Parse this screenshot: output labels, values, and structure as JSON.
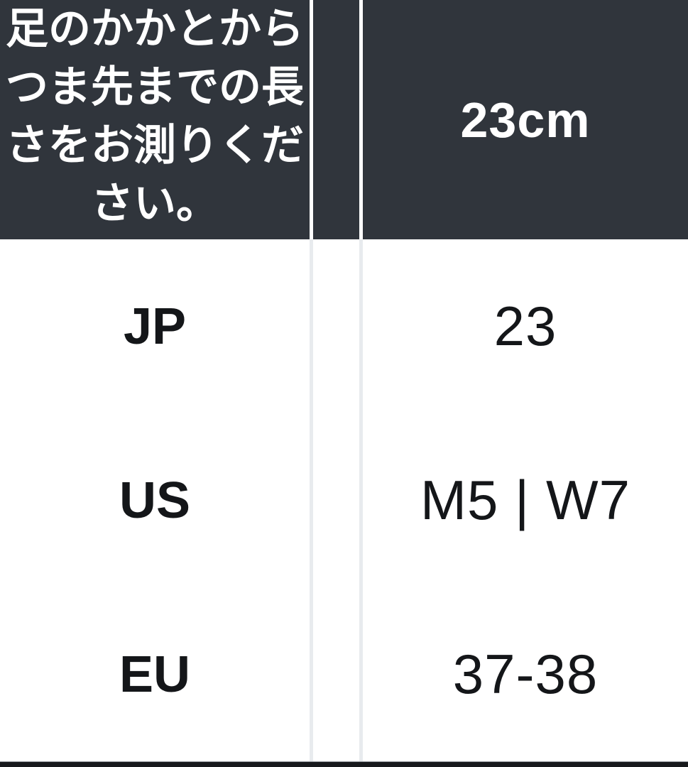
{
  "chart_data": {
    "type": "table",
    "title": "足のかかとからつま先までの長さをお測りください。",
    "columns": [
      "",
      "23cm"
    ],
    "rows": [
      [
        "JP",
        "23"
      ],
      [
        "US",
        "M5 | W7"
      ],
      [
        "EU",
        "37-38"
      ]
    ],
    "layout": "size conversion chart; dark header row, white body rows, light column dividers"
  },
  "header": {
    "instruction": "足のかかとから\nつま先までの長\nさをお測りくだ\nさい。",
    "size_label": "23cm"
  },
  "rows": [
    {
      "label": "JP",
      "value": "23"
    },
    {
      "label": "US",
      "value": "M5 | W7"
    },
    {
      "label": "EU",
      "value": "37-38"
    }
  ],
  "colors": {
    "header_bg": "#30353c",
    "header_text": "#ffffff",
    "body_text": "#141619",
    "divider_light": "#e8ebee",
    "bottom_band": "#17191c"
  }
}
